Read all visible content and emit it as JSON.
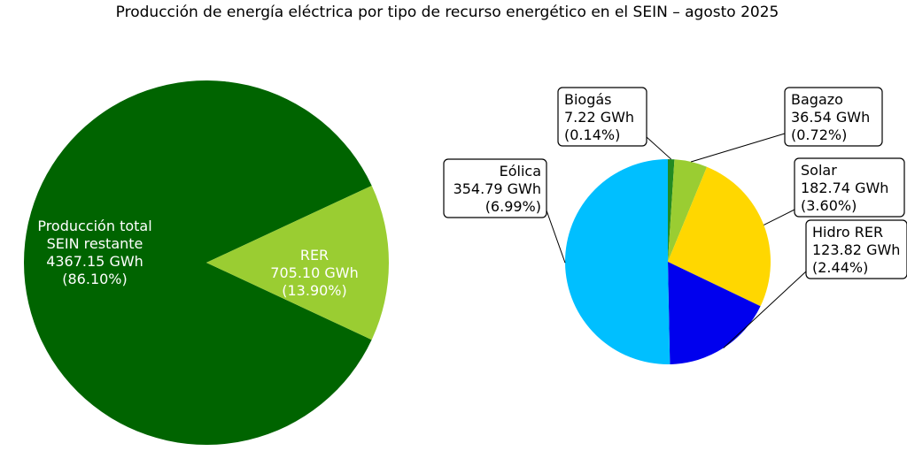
{
  "title": "Producción de energía eléctrica por tipo de recurso energético en el SEIN – agosto 2025",
  "chart_data": [
    {
      "type": "pie",
      "unit": "GWh",
      "slices": [
        {
          "label": [
            "Producción total",
            "SEIN restante"
          ],
          "value": 4367.15,
          "value_text": "4367.15 GWh",
          "pct_text": "(86.10%)",
          "color": "#006400",
          "text_color": "#ffffff"
        },
        {
          "label": [
            "RER"
          ],
          "value": 705.1,
          "value_text": "705.10 GWh",
          "pct_text": "(13.90%)",
          "color": "#9acd32",
          "text_color": "#ffffff"
        }
      ]
    },
    {
      "type": "pie",
      "unit": "GWh",
      "slices": [
        {
          "label": [
            "Biogás"
          ],
          "value": 7.22,
          "value_text": "7.22 GWh",
          "pct_text": "(0.14%)",
          "color": "#228b22"
        },
        {
          "label": [
            "Bagazo"
          ],
          "value": 36.54,
          "value_text": "36.54 GWh",
          "pct_text": "(0.72%)",
          "color": "#9acd32"
        },
        {
          "label": [
            "Solar"
          ],
          "value": 182.74,
          "value_text": "182.74 GWh",
          "pct_text": "(3.60%)",
          "color": "#ffd700"
        },
        {
          "label": [
            "Hidro RER"
          ],
          "value": 123.82,
          "value_text": "123.82 GWh",
          "pct_text": "(2.44%)",
          "color": "#0000ee"
        },
        {
          "label": [
            "Eólica"
          ],
          "value": 354.79,
          "value_text": "354.79 GWh",
          "pct_text": "(6.99%)",
          "color": "#00bfff"
        }
      ]
    }
  ]
}
